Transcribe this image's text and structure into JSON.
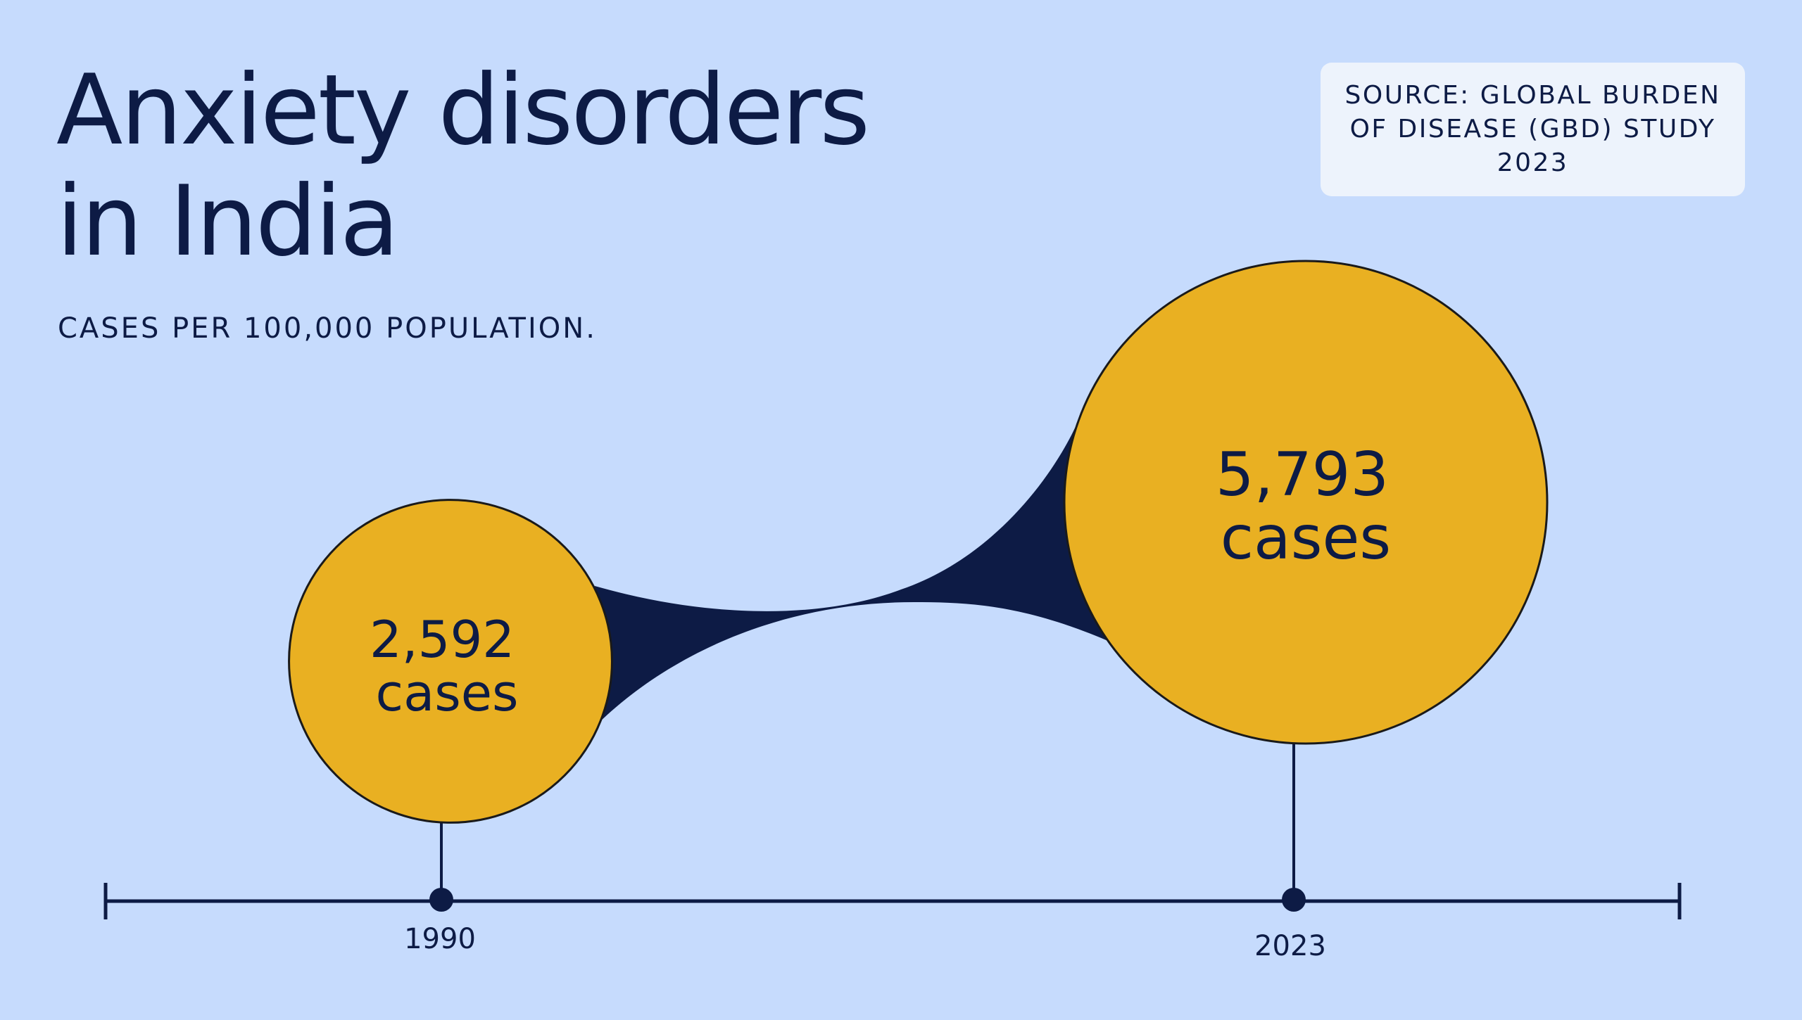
{
  "colors": {
    "background": "#c6dbfd",
    "bubble": "#e9b022",
    "dark": "#0d1b45",
    "source_box": "#edf3fc"
  },
  "chart_data": {
    "type": "bubble-timeline",
    "title": "Anxiety disorders in India",
    "title_lines": [
      "Anxiety disorders",
      "in India"
    ],
    "subtitle": "CASES PER 100,000 POPULATION.",
    "source": "SOURCE: GLOBAL BURDEN OF DISEASE (GBD) STUDY 2023",
    "unit": "cases",
    "points": [
      {
        "year": 1990,
        "year_label": "1990",
        "value": 2592,
        "value_label": "2,592",
        "unit_label": "cases"
      },
      {
        "year": 2023,
        "year_label": "2023",
        "value": 5793,
        "value_label": "5,793",
        "unit_label": "cases"
      }
    ]
  }
}
